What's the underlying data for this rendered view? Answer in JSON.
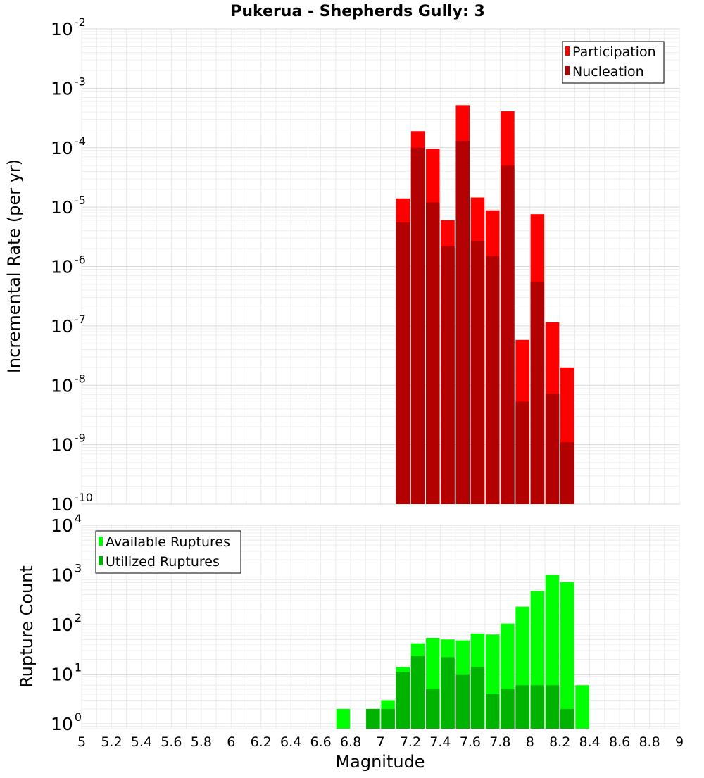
{
  "chart_data": [
    {
      "type": "bar",
      "title": "Pukerua - Shepherds Gully: 3",
      "xlabel": "Magnitude",
      "ylabel": "Incremental Rate (per yr)",
      "yscale": "log",
      "xlim": [
        5,
        9
      ],
      "ylim": [
        1e-10,
        0.01
      ],
      "grid": true,
      "legend_position": "top-right",
      "x_ticks": [
        "5",
        "5.2",
        "5.4",
        "5.6",
        "5.8",
        "6",
        "6.2",
        "6.4",
        "6.6",
        "6.8",
        "7",
        "7.2",
        "7.4",
        "7.6",
        "7.8",
        "8",
        "8.2",
        "8.4",
        "8.6",
        "8.8",
        "9"
      ],
      "y_ticks": [
        {
          "base": "10",
          "exp": "-10",
          "value": 1e-10
        },
        {
          "base": "10",
          "exp": "-9",
          "value": 1e-09
        },
        {
          "base": "10",
          "exp": "-8",
          "value": 1e-08
        },
        {
          "base": "10",
          "exp": "-7",
          "value": 1e-07
        },
        {
          "base": "10",
          "exp": "-6",
          "value": 1e-06
        },
        {
          "base": "10",
          "exp": "-5",
          "value": 1e-05
        },
        {
          "base": "10",
          "exp": "-4",
          "value": 0.0001
        },
        {
          "base": "10",
          "exp": "-3",
          "value": 0.001
        },
        {
          "base": "10",
          "exp": "-2",
          "value": 0.01
        }
      ],
      "x": [
        7.15,
        7.25,
        7.35,
        7.45,
        7.55,
        7.65,
        7.75,
        7.85,
        7.95,
        8.05,
        8.15,
        8.25
      ],
      "series": [
        {
          "name": "Participation",
          "color": "#ff0000",
          "values": [
            1.4e-05,
            0.00019,
            9.5e-05,
            6e-06,
            0.00052,
            1.45e-05,
            8.8e-06,
            0.00041,
            5.8e-08,
            7.6e-06,
            1.15e-07,
            2e-08
          ]
        },
        {
          "name": "Nucleation",
          "color": "#b30000",
          "values": [
            5.5e-06,
            0.0001,
            1.2e-05,
            2.2e-06,
            0.00013,
            2.7e-06,
            1.5e-06,
            5e-05,
            5.3e-09,
            5.6e-07,
            7.2e-09,
            1.1e-09
          ]
        }
      ]
    },
    {
      "type": "bar",
      "xlabel": "Magnitude",
      "ylabel": "Rupture Count",
      "yscale": "log",
      "xlim": [
        5,
        9
      ],
      "ylim": [
        0.8,
        10000
      ],
      "grid": true,
      "legend_position": "top-left",
      "y_ticks": [
        {
          "base": "10",
          "exp": "0",
          "value": 1
        },
        {
          "base": "10",
          "exp": "1",
          "value": 10
        },
        {
          "base": "10",
          "exp": "2",
          "value": 100
        },
        {
          "base": "10",
          "exp": "3",
          "value": 1000
        },
        {
          "base": "10",
          "exp": "4",
          "value": 10000
        }
      ],
      "x": [
        6.75,
        6.95,
        7.05,
        7.15,
        7.25,
        7.35,
        7.45,
        7.55,
        7.65,
        7.75,
        7.85,
        7.95,
        8.05,
        8.15,
        8.25,
        8.35
      ],
      "series": [
        {
          "name": "Available Ruptures",
          "color": "#00ff00",
          "values": [
            2,
            2,
            3,
            14,
            42,
            54,
            50,
            48,
            66,
            63,
            105,
            230,
            470,
            1010,
            720,
            6
          ]
        },
        {
          "name": "Utilized Ruptures",
          "color": "#00b300",
          "values": [
            0,
            2,
            2,
            11,
            23,
            5,
            22,
            10,
            14,
            4,
            5,
            6,
            6,
            6,
            2,
            0
          ]
        }
      ]
    }
  ]
}
